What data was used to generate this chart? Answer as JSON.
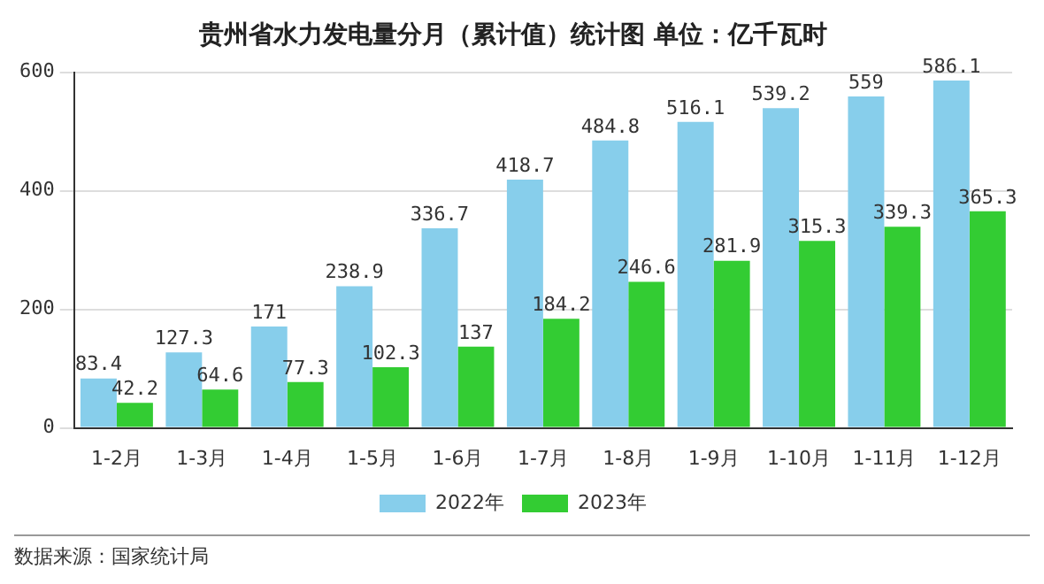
{
  "chart_data": {
    "type": "bar",
    "title": "贵州省水力发电量分月（累计值）统计图 单位：亿千瓦时",
    "categories": [
      "1-2月",
      "1-3月",
      "1-4月",
      "1-5月",
      "1-6月",
      "1-7月",
      "1-8月",
      "1-9月",
      "1-10月",
      "1-11月",
      "1-12月"
    ],
    "series": [
      {
        "name": "2022年",
        "color": "#87ceeb",
        "values": [
          83.4,
          127.3,
          171,
          238.9,
          336.7,
          418.7,
          484.8,
          516.1,
          539.2,
          559,
          586.1
        ]
      },
      {
        "name": "2023年",
        "color": "#33cc33",
        "values": [
          42.2,
          64.6,
          77.3,
          102.3,
          137,
          184.2,
          246.6,
          281.9,
          315.3,
          339.3,
          365.3
        ]
      }
    ],
    "ylim": [
      0,
      600
    ],
    "yticks": [
      0,
      200,
      400,
      600
    ],
    "grid": "y",
    "legend": "bottom",
    "data_labels": true,
    "annotations": [
      "数据来源：国家统计局"
    ]
  }
}
